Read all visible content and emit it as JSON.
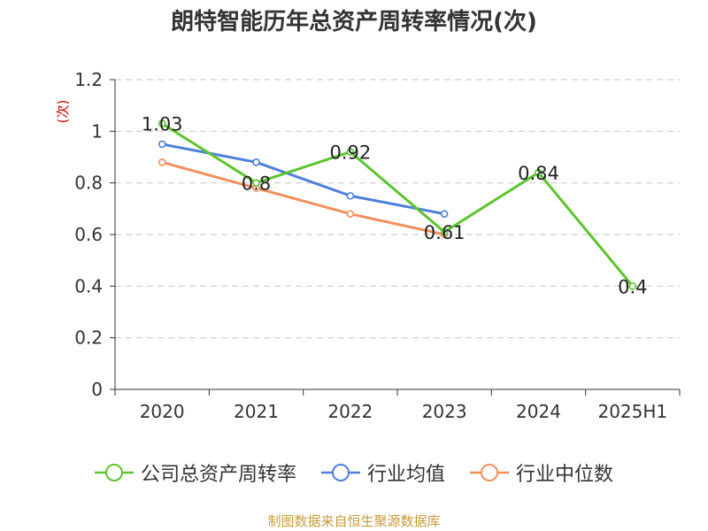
{
  "title": "朗特智能历年总资产周转率情况(次)",
  "source": "制图数据来自恒生聚源数据库",
  "chart_data": {
    "type": "line",
    "title": "朗特智能历年总资产周转率情况(次)",
    "ylabel": "(次)",
    "xlabel": "",
    "categories": [
      "2020",
      "2021",
      "2022",
      "2023",
      "2024",
      "2025H1"
    ],
    "ylim": [
      0,
      1.2
    ],
    "yticks": [
      "0",
      "0.2",
      "0.4",
      "0.6",
      "0.8",
      "1",
      "1.2"
    ],
    "grid": true,
    "legend_position": "bottom",
    "series": [
      {
        "name": "公司总资产周转率",
        "color": "#5cc42d",
        "values": [
          1.03,
          0.8,
          0.92,
          0.61,
          0.84,
          0.4
        ],
        "labels": [
          "1.03",
          "0.8",
          "0.92",
          "0.61",
          "0.84",
          "0.4"
        ]
      },
      {
        "name": "行业均值",
        "color": "#4e7fdc",
        "values": [
          0.95,
          0.88,
          0.75,
          0.68,
          null,
          null
        ]
      },
      {
        "name": "行业中位数",
        "color": "#f2905c",
        "values": [
          0.88,
          0.78,
          0.68,
          0.6,
          null,
          null
        ]
      }
    ]
  }
}
